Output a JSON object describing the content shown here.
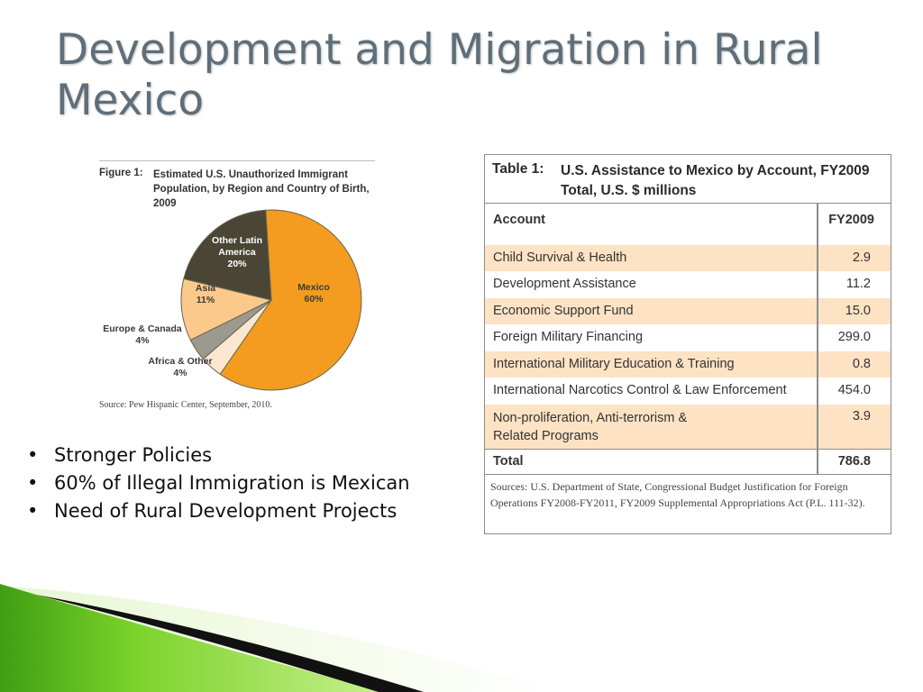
{
  "slide": {
    "title": "Development and Migration in Rural Mexico",
    "bullets": [
      "Stronger Policies",
      "60% of Illegal Immigration is Mexican",
      "Need of Rural Development Projects"
    ]
  },
  "figure": {
    "label": "Figure 1:",
    "caption": "Estimated U.S. Unauthorized Immigrant Population, by Region and Country of Birth, 2009",
    "source": "Source: Pew Hispanic Center, September, 2010."
  },
  "chart_data": {
    "type": "pie",
    "title": "Estimated U.S. Unauthorized Immigrant Population, by Region and Country of Birth, 2009",
    "slices": [
      {
        "label": "Mexico",
        "value": 60,
        "display": "60%",
        "color": "#f39c1f"
      },
      {
        "label": "Africa & Other",
        "value": 4,
        "display": "4%",
        "color": "#fbe7cf"
      },
      {
        "label": "Europe & Canada",
        "value": 4,
        "display": "4%",
        "color": "#9c9a8e"
      },
      {
        "label": "Asia",
        "value": 11,
        "display": "11%",
        "color": "#fbc98a"
      },
      {
        "label": "Other Latin America",
        "value": 20,
        "display": "20%",
        "color": "#4a4534"
      }
    ]
  },
  "table": {
    "label": "Table 1:",
    "title": "U.S. Assistance to Mexico by Account, FY2009 Total, U.S. $ millions",
    "columns": [
      "Account",
      "FY2009"
    ],
    "rows": [
      {
        "account": "Child Survival & Health",
        "value": "2.9"
      },
      {
        "account": "Development Assistance",
        "value": "11.2"
      },
      {
        "account": "Economic Support Fund",
        "value": "15.0"
      },
      {
        "account": "Foreign Military Financing",
        "value": "299.0"
      },
      {
        "account": "International Military Education & Training",
        "value": "0.8"
      },
      {
        "account": "International Narcotics Control & Law Enforcement",
        "value": "454.0"
      },
      {
        "account": "Non-proliferation, Anti-terrorism & Related Programs",
        "value": "3.9"
      }
    ],
    "total_label": "Total",
    "total_value": "786.8",
    "source": "Sources: U.S. Department of State, Congressional Budget Justification for Foreign Operations FY2008-FY2011, FY2009 Supplemental Appropriations Act (P.L. 111-32)."
  },
  "colors": {
    "title": "#5f6e78",
    "table_shade": "#fde3c4",
    "accent_green": "#5cbf1c"
  }
}
